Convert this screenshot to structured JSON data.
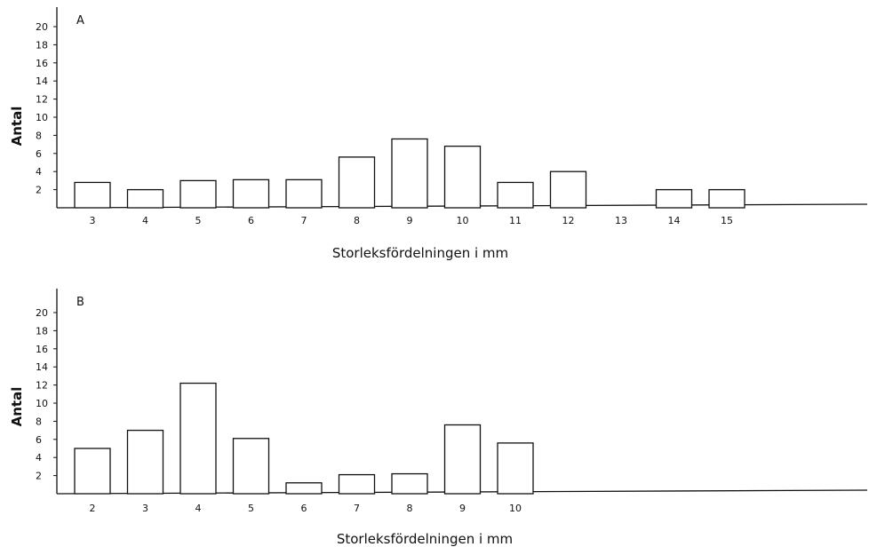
{
  "chart_data": [
    {
      "type": "bar",
      "panel_label": "A",
      "categories": [
        "3",
        "4",
        "5",
        "6",
        "7",
        "8",
        "9",
        "10",
        "11",
        "12",
        "13",
        "14",
        "15"
      ],
      "values": [
        2.8,
        2.0,
        3.0,
        3.1,
        3.1,
        5.6,
        7.6,
        6.8,
        2.8,
        4.0,
        0,
        2.0,
        2.0
      ],
      "xlabel": "Storleksfördelningen i mm",
      "ylabel": "Antal",
      "yticks": [
        "2",
        "4",
        "6",
        "8",
        "10",
        "12",
        "14",
        "16",
        "18",
        "20"
      ],
      "ylim": [
        0,
        22
      ],
      "grid": false
    },
    {
      "type": "bar",
      "panel_label": "B",
      "categories": [
        "2",
        "3",
        "4",
        "5",
        "6",
        "7",
        "8",
        "9",
        "10"
      ],
      "values": [
        5.0,
        7.0,
        12.2,
        6.1,
        1.2,
        2.1,
        2.2,
        7.6,
        5.6
      ],
      "xlabel": "Storleksfördelningen i mm",
      "ylabel": "Antal",
      "yticks": [
        "2",
        "4",
        "6",
        "8",
        "10",
        "12",
        "14",
        "16",
        "18",
        "20"
      ],
      "ylim": [
        0,
        22
      ],
      "grid": false
    }
  ]
}
